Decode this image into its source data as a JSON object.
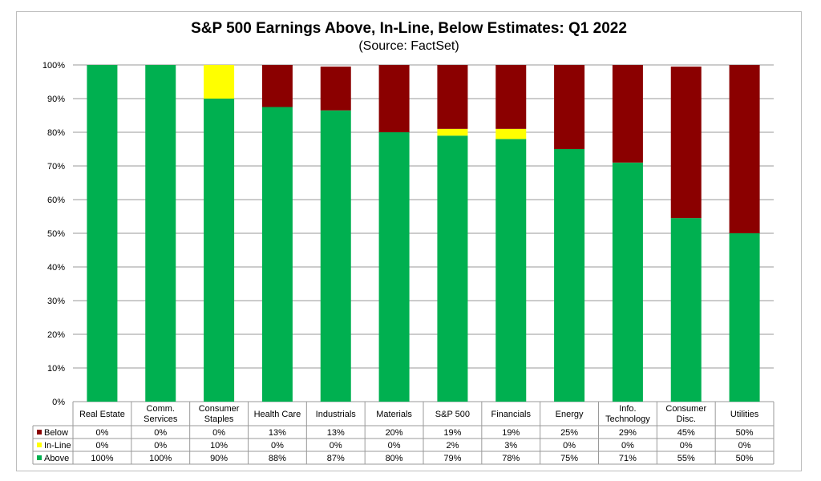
{
  "chart_data": {
    "type": "bar",
    "stacked": true,
    "title": "S&P 500 Earnings Above, In-Line, Below Estimates: Q1 2022",
    "subtitle": "(Source: FactSet)",
    "ylim": [
      0,
      100
    ],
    "yticks": [
      "0%",
      "10%",
      "20%",
      "30%",
      "40%",
      "50%",
      "60%",
      "70%",
      "80%",
      "90%",
      "100%"
    ],
    "grid": true,
    "categories": [
      [
        "Real Estate"
      ],
      [
        "Comm.",
        "Services"
      ],
      [
        "Consumer",
        "Staples"
      ],
      [
        "Health Care"
      ],
      [
        "Industrials"
      ],
      [
        "Materials"
      ],
      [
        "S&P 500"
      ],
      [
        "Financials"
      ],
      [
        "Energy"
      ],
      [
        "Info.",
        "Technology"
      ],
      [
        "Consumer",
        "Disc."
      ],
      [
        "Utilities"
      ]
    ],
    "series": [
      {
        "name": "Below",
        "color": "#8b0000",
        "values": [
          0,
          0,
          0,
          13,
          13,
          20,
          19,
          19,
          25,
          29,
          45,
          50
        ],
        "labels": [
          "0%",
          "0%",
          "0%",
          "13%",
          "13%",
          "20%",
          "19%",
          "19%",
          "25%",
          "29%",
          "45%",
          "50%"
        ]
      },
      {
        "name": "In-Line",
        "color": "#ffff00",
        "values": [
          0,
          0,
          10,
          0,
          0,
          0,
          2,
          3,
          0,
          0,
          0,
          0
        ],
        "labels": [
          "0%",
          "0%",
          "10%",
          "0%",
          "0%",
          "0%",
          "2%",
          "3%",
          "0%",
          "0%",
          "0%",
          "0%"
        ]
      },
      {
        "name": "Above",
        "color": "#00b050",
        "values": [
          100,
          100,
          90,
          87.5,
          86.5,
          80,
          79,
          78,
          75,
          71,
          54.5,
          50
        ],
        "labels": [
          "100%",
          "100%",
          "90%",
          "88%",
          "87%",
          "80%",
          "79%",
          "78%",
          "75%",
          "71%",
          "55%",
          "50%"
        ]
      }
    ]
  }
}
